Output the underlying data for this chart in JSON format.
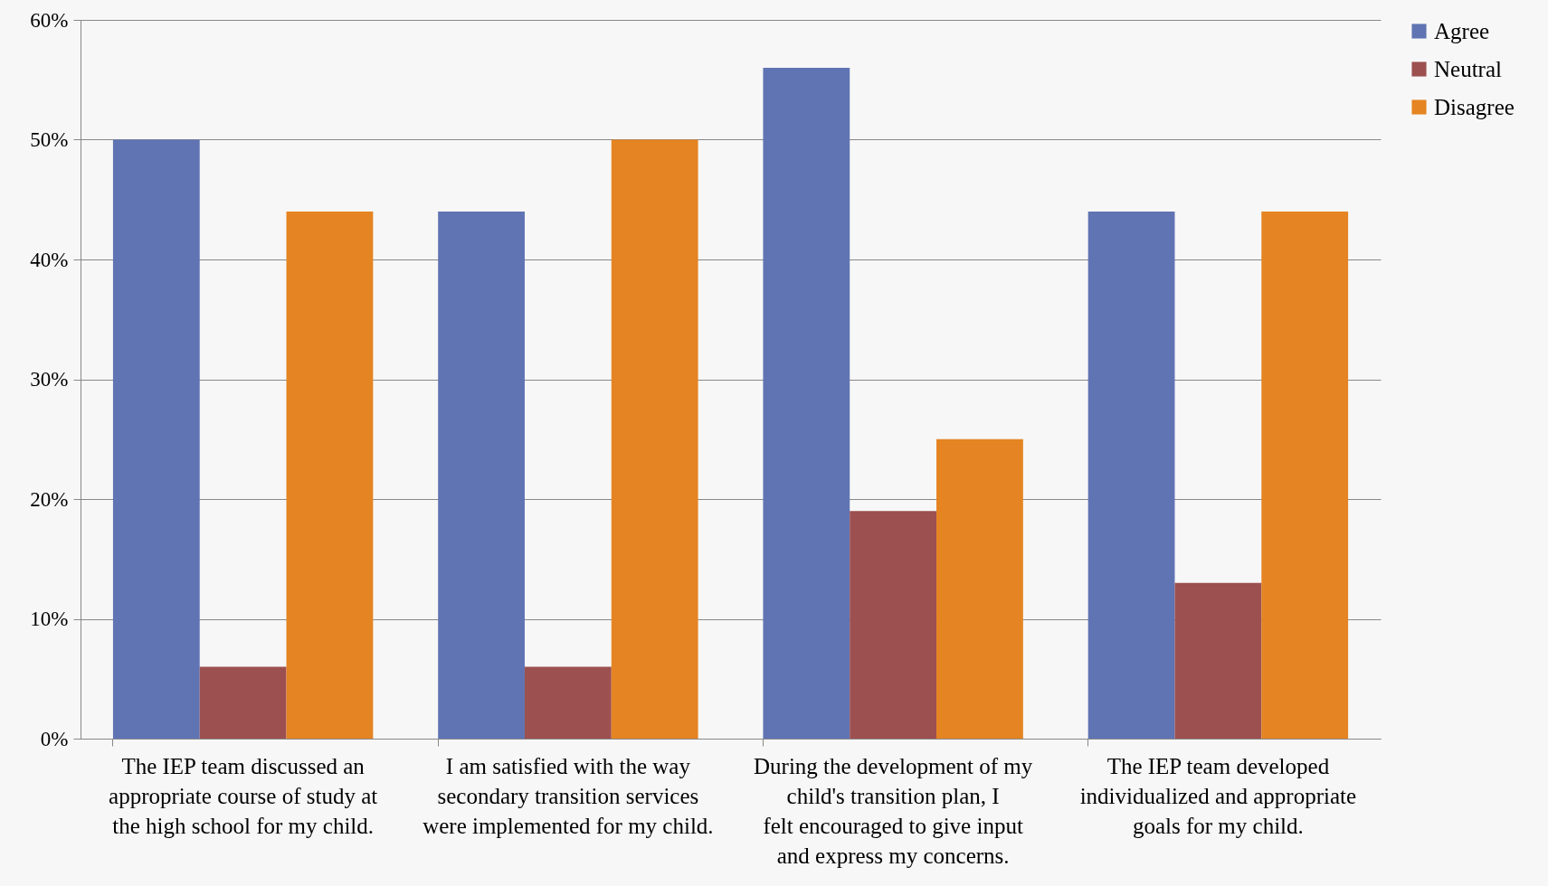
{
  "chart_data": {
    "type": "bar",
    "categories": [
      "The IEP team discussed an appropriate course of study at the high school for my child.",
      "I am satisfied with the way secondary transition services were implemented for my child.",
      "During the development of my child's transition plan, I felt encouraged to give input and express my concerns.",
      "The IEP team developed individualized and appropriate goals for my child."
    ],
    "series": [
      {
        "name": "Agree",
        "color": "#6074b3",
        "values": [
          50,
          44,
          56,
          44
        ]
      },
      {
        "name": "Neutral",
        "color": "#9c5050",
        "values": [
          6,
          6,
          19,
          13
        ]
      },
      {
        "name": "Disagree",
        "color": "#e58422",
        "values": [
          44,
          50,
          25,
          44
        ]
      }
    ],
    "ylim": [
      0,
      60
    ],
    "yticks": [
      {
        "value": 0,
        "label": "0%"
      },
      {
        "value": 10,
        "label": "10%"
      },
      {
        "value": 20,
        "label": "20%"
      },
      {
        "value": 30,
        "label": "30%"
      },
      {
        "value": 40,
        "label": "40%"
      },
      {
        "value": 50,
        "label": "50%"
      },
      {
        "value": 60,
        "label": "60%"
      }
    ],
    "grid": "y",
    "legend": "right"
  }
}
